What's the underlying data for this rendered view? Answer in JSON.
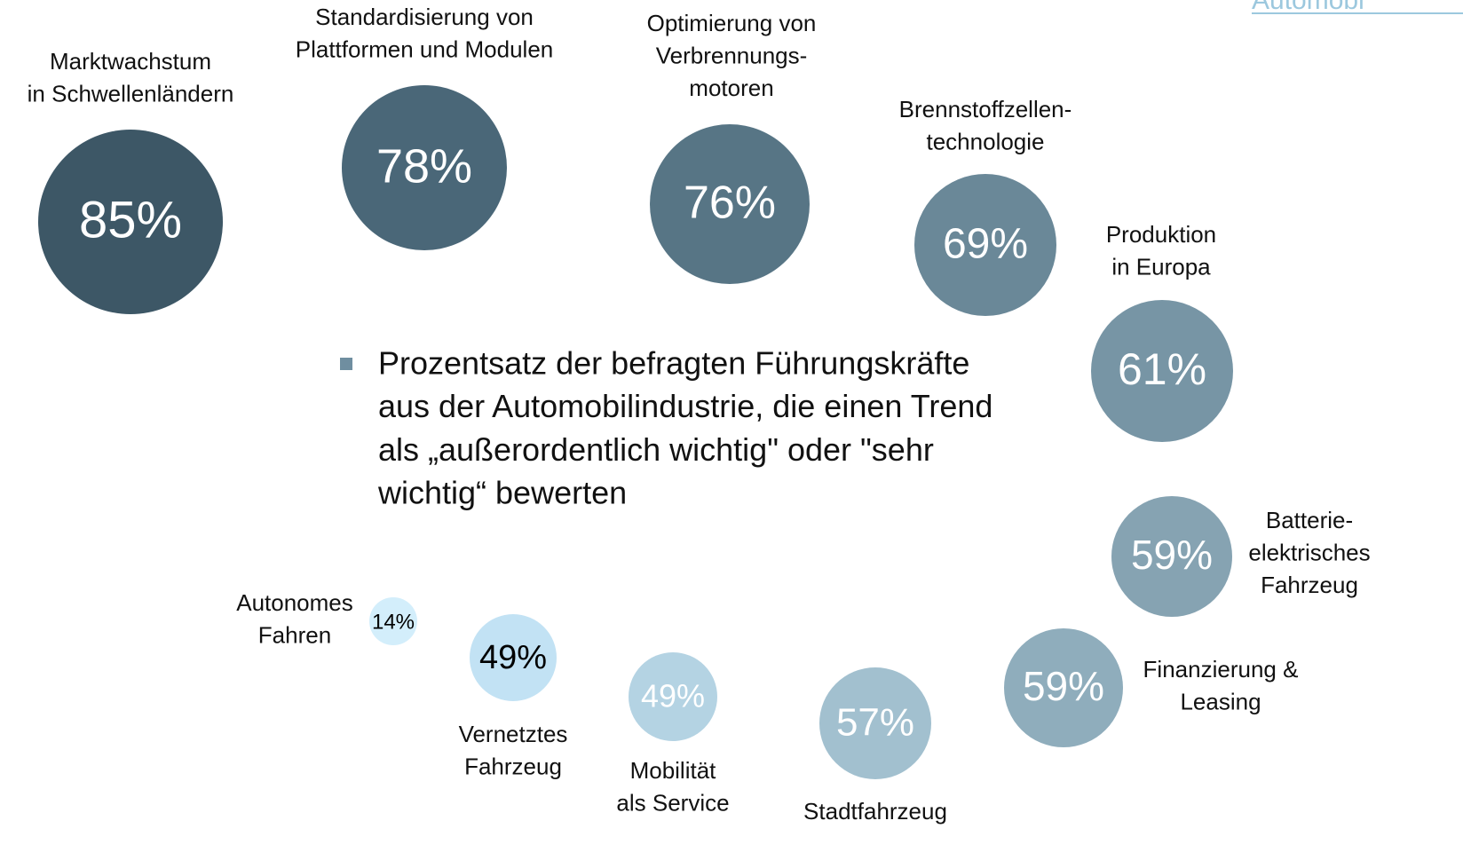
{
  "header": "Automobi",
  "note_lines": [
    "Prozentsatz der befragten Führungskräfte",
    "aus der Automobilindustrie, die einen Trend",
    "als „außerordentlich wichtig\" oder \"sehr",
    "wichtig“ bewerten"
  ],
  "chart_data": {
    "type": "bubble",
    "items": [
      {
        "label": [
          "Marktwachstum",
          "in Schwellenländern"
        ],
        "value": 85,
        "value_label": "85%",
        "color": "#3d5766"
      },
      {
        "label": [
          "Standardisierung von",
          "Plattformen und Modulen"
        ],
        "value": 78,
        "value_label": "78%",
        "color": "#4a6778"
      },
      {
        "label": [
          "Optimierung von",
          "Verbrennungs-",
          "motoren"
        ],
        "value": 76,
        "value_label": "76%",
        "color": "#577585"
      },
      {
        "label": [
          "Brennstoffzellen-",
          "technologie"
        ],
        "value": 69,
        "value_label": "69%",
        "color": "#6a8898"
      },
      {
        "label": [
          "Produktion",
          "in Europa"
        ],
        "value": 61,
        "value_label": "61%",
        "color": "#7795a5"
      },
      {
        "label": [
          "Batterie-",
          "elektrisches",
          "Fahrzeug"
        ],
        "value": 59,
        "value_label": "59%",
        "color": "#86a3b2"
      },
      {
        "label": [
          "Finanzierung &",
          "Leasing"
        ],
        "value": 59,
        "value_label": "59%",
        "color": "#8fadbc"
      },
      {
        "label": [
          "Stadtfahrzeug"
        ],
        "value": 57,
        "value_label": "57%",
        "color": "#a2c0cf"
      },
      {
        "label": [
          "Mobilität",
          "als Service"
        ],
        "value": 49,
        "value_label": "49%",
        "color": "#b4d3e3"
      },
      {
        "label": [
          "Vernetztes",
          "Fahrzeug"
        ],
        "value": 49,
        "value_label": "49%",
        "color": "#c2e2f4"
      },
      {
        "label": [
          "Autonomes",
          "Fahren"
        ],
        "value": 14,
        "value_label": "14%",
        "color": "#d3eefb"
      }
    ]
  }
}
